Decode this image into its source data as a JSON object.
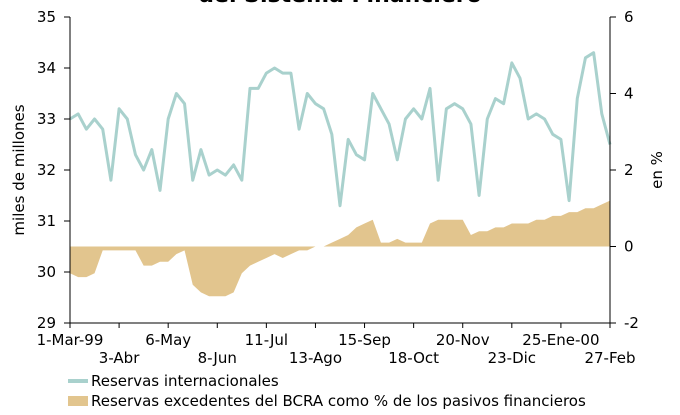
{
  "chart_data": {
    "type": "line-area",
    "title": "del Sistema Financiero",
    "ylabel": "miles de millones",
    "y2label": "en %",
    "ylim": [
      29,
      35
    ],
    "yticks": [
      29,
      30,
      31,
      32,
      33,
      34,
      35
    ],
    "y2lim": [
      -2,
      6
    ],
    "y2ticks": [
      -2,
      0,
      2,
      4,
      6
    ],
    "categories": [
      "1-Mar-99",
      null,
      null,
      null,
      null,
      null,
      "3-Abr",
      null,
      null,
      null,
      null,
      null,
      "6-May",
      null,
      null,
      null,
      null,
      null,
      "8-Jun",
      null,
      null,
      null,
      null,
      null,
      "11-Jul",
      null,
      null,
      null,
      null,
      null,
      "13-Ago",
      null,
      null,
      null,
      null,
      null,
      "15-Sep",
      null,
      null,
      null,
      null,
      null,
      "18-Oct",
      null,
      null,
      null,
      null,
      null,
      "20-Nov",
      null,
      null,
      null,
      null,
      null,
      "23-Dic",
      null,
      null,
      null,
      null,
      null,
      "25-Ene-00",
      null,
      null,
      null,
      null,
      null,
      "27-Feb"
    ],
    "series": [
      {
        "name": "Reservas internacionales",
        "type": "line",
        "color": "#a9d1cd",
        "values": [
          33.0,
          33.1,
          32.8,
          33.0,
          32.8,
          31.8,
          33.2,
          33.0,
          32.3,
          32.0,
          32.4,
          31.6,
          33.0,
          33.5,
          33.3,
          31.8,
          32.4,
          31.9,
          32.0,
          31.9,
          32.1,
          31.8,
          33.6,
          33.6,
          33.9,
          34.0,
          33.9,
          33.9,
          32.8,
          33.5,
          33.3,
          33.2,
          32.7,
          31.3,
          32.6,
          32.3,
          32.2,
          33.5,
          33.2,
          32.9,
          32.2,
          33.0,
          33.2,
          33.0,
          33.6,
          31.8,
          33.2,
          33.3,
          33.2,
          32.9,
          31.5,
          33.0,
          33.4,
          33.3,
          34.1,
          33.8,
          33.0,
          33.1,
          33.0,
          32.7,
          32.6,
          31.4,
          33.4,
          34.2,
          34.3,
          33.1,
          32.5
        ]
      },
      {
        "name": "Reservas excedentes del BCRA como % de los pasivos financieros",
        "type": "area",
        "axis": "y2",
        "color": "#e2c58e",
        "values": [
          -0.7,
          -0.8,
          -0.8,
          -0.7,
          -0.1,
          -0.1,
          -0.1,
          -0.1,
          -0.1,
          -0.5,
          -0.5,
          -0.4,
          -0.4,
          -0.2,
          -0.1,
          -1.0,
          -1.2,
          -1.3,
          -1.3,
          -1.3,
          -1.2,
          -0.7,
          -0.5,
          -0.4,
          -0.3,
          -0.2,
          -0.3,
          -0.2,
          -0.1,
          -0.1,
          0.0,
          0.0,
          0.1,
          0.2,
          0.3,
          0.5,
          0.6,
          0.7,
          0.1,
          0.1,
          0.2,
          0.1,
          0.1,
          0.1,
          0.6,
          0.7,
          0.7,
          0.7,
          0.7,
          0.3,
          0.4,
          0.4,
          0.5,
          0.5,
          0.6,
          0.6,
          0.6,
          0.7,
          0.7,
          0.8,
          0.8,
          0.9,
          0.9,
          1.0,
          1.0,
          1.1,
          1.2
        ]
      }
    ],
    "legend": "bottom-left"
  }
}
